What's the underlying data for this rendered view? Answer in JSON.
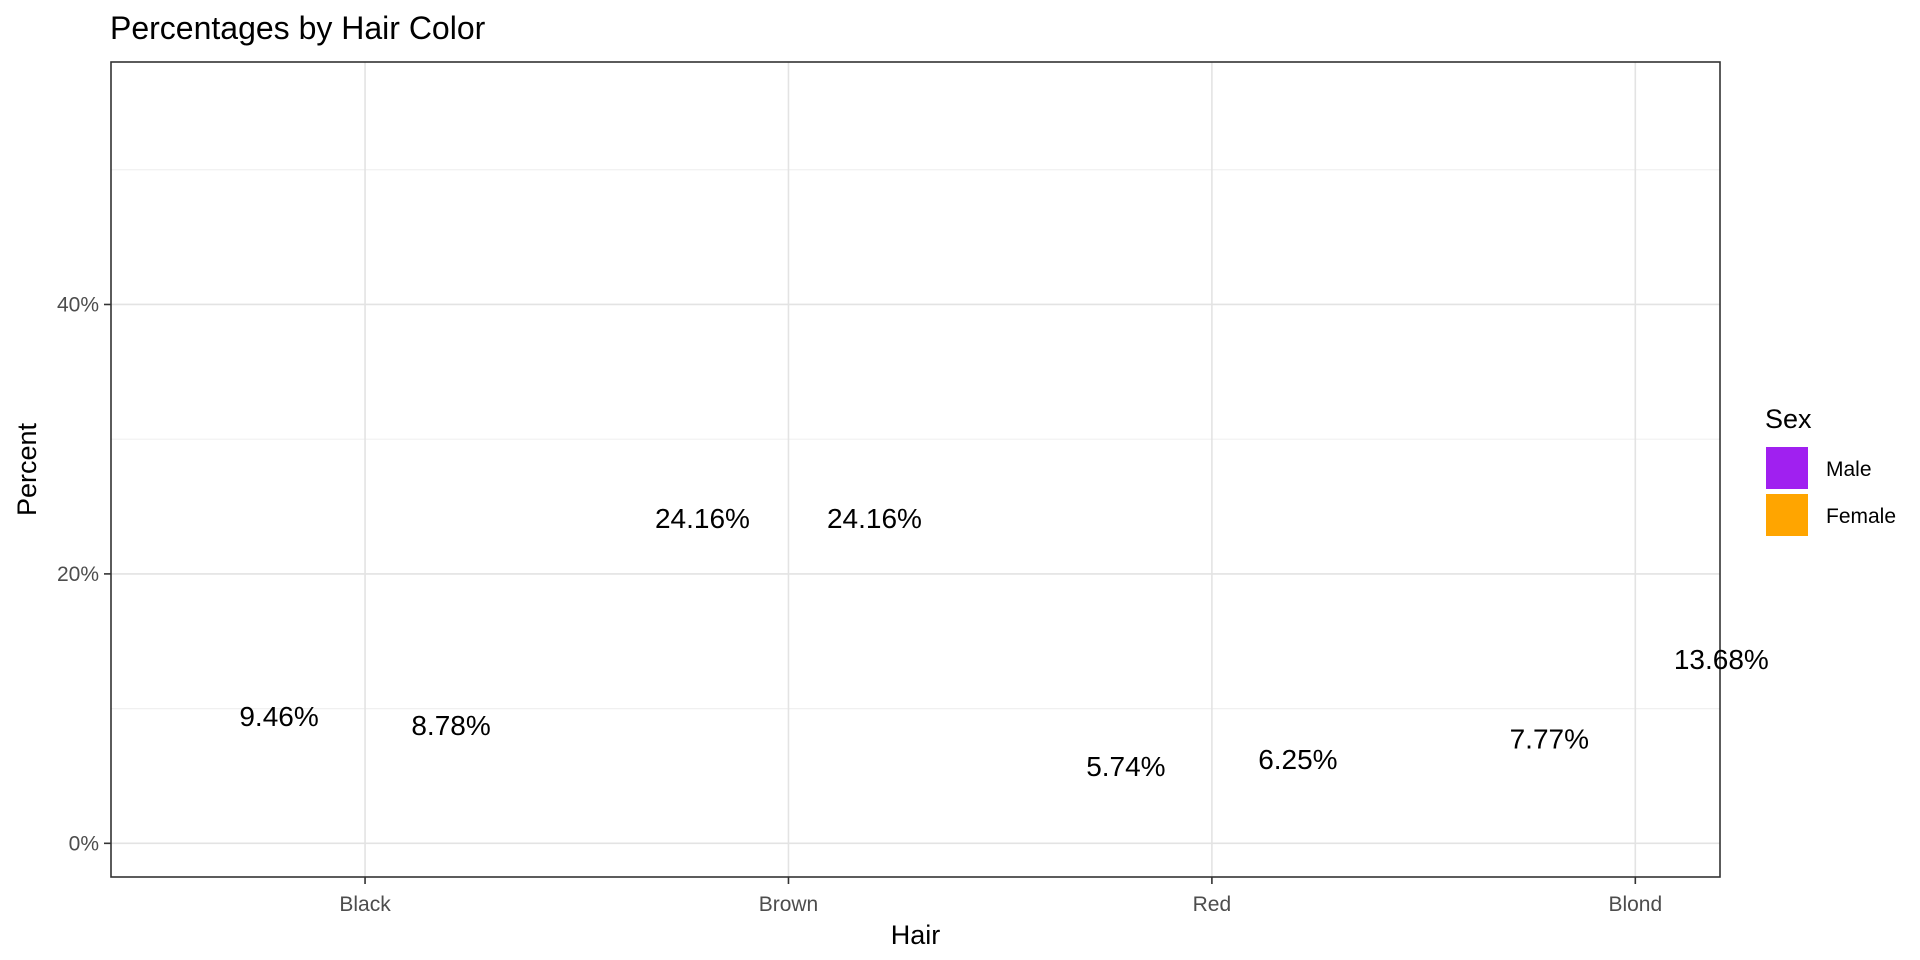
{
  "chart_data": {
    "type": "bar",
    "title": "Percentages by Hair Color",
    "xlabel": "Hair",
    "ylabel": "Percent",
    "categories": [
      "Black",
      "Brown",
      "Red",
      "Blond"
    ],
    "series": [
      {
        "name": "Male",
        "color": "#A020F0",
        "values": [
          9.46,
          24.16,
          5.74,
          7.77
        ],
        "labels": [
          "9.46%",
          "24.16%",
          "5.74%",
          "7.77%"
        ]
      },
      {
        "name": "Female",
        "color": "#FFA500",
        "values": [
          8.78,
          24.16,
          6.25,
          13.68
        ],
        "labels": [
          "8.78%",
          "24.16%",
          "6.25%",
          "13.68%"
        ]
      }
    ],
    "ylim": [
      -2.5,
      58
    ],
    "yticks": [
      0,
      20,
      40
    ],
    "ytick_labels": [
      "0%",
      "20%",
      "40%"
    ],
    "grid": true,
    "legend": {
      "title": "Sex",
      "position": "right"
    }
  }
}
